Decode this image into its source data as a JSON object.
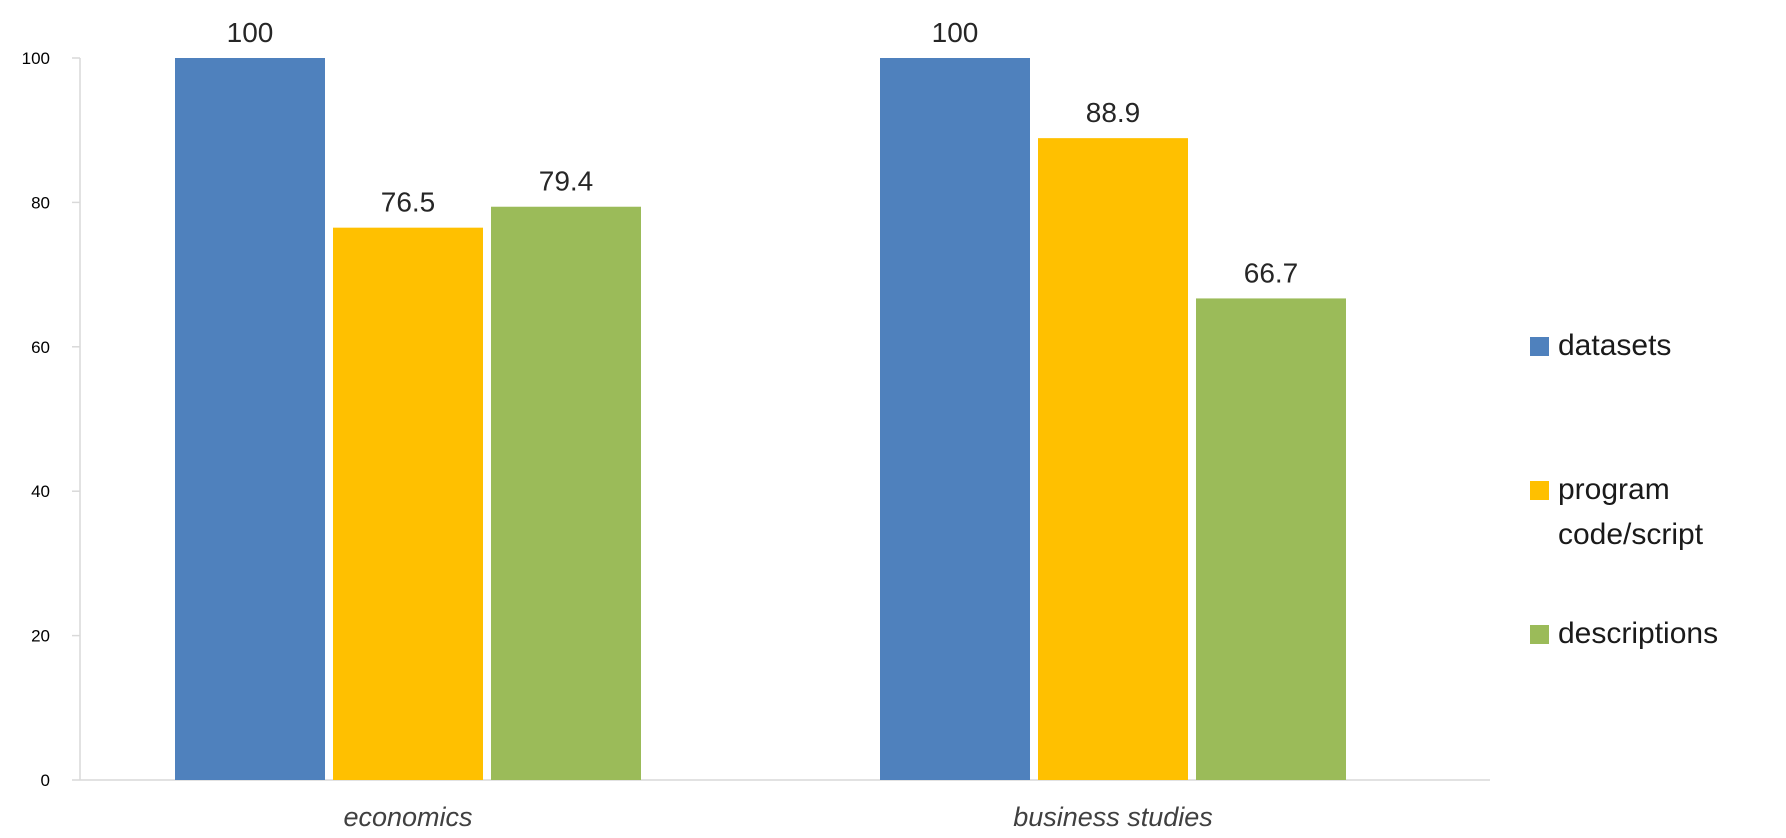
{
  "chart_data": {
    "type": "bar",
    "categories": [
      "economics",
      "business studies"
    ],
    "series": [
      {
        "name": "datasets",
        "values": [
          100,
          100
        ],
        "color": "#4F81BD",
        "label_lines": [
          "datasets"
        ]
      },
      {
        "name": "program code/script",
        "values": [
          76.5,
          88.9
        ],
        "color": "#FFC000",
        "label_lines": [
          "program",
          "code/script"
        ]
      },
      {
        "name": "descriptions",
        "values": [
          79.4,
          66.7
        ],
        "color": "#9BBB59",
        "label_lines": [
          "descriptions"
        ]
      }
    ],
    "value_labels": [
      [
        "100",
        "100"
      ],
      [
        "76.5",
        "88.9"
      ],
      [
        "79.4",
        "66.7"
      ]
    ],
    "y_ticks": [
      0,
      20,
      40,
      60,
      80,
      100
    ],
    "ylim": [
      0,
      100
    ],
    "grid": false,
    "legend": "right",
    "title": "",
    "xlabel": "",
    "ylabel": ""
  }
}
